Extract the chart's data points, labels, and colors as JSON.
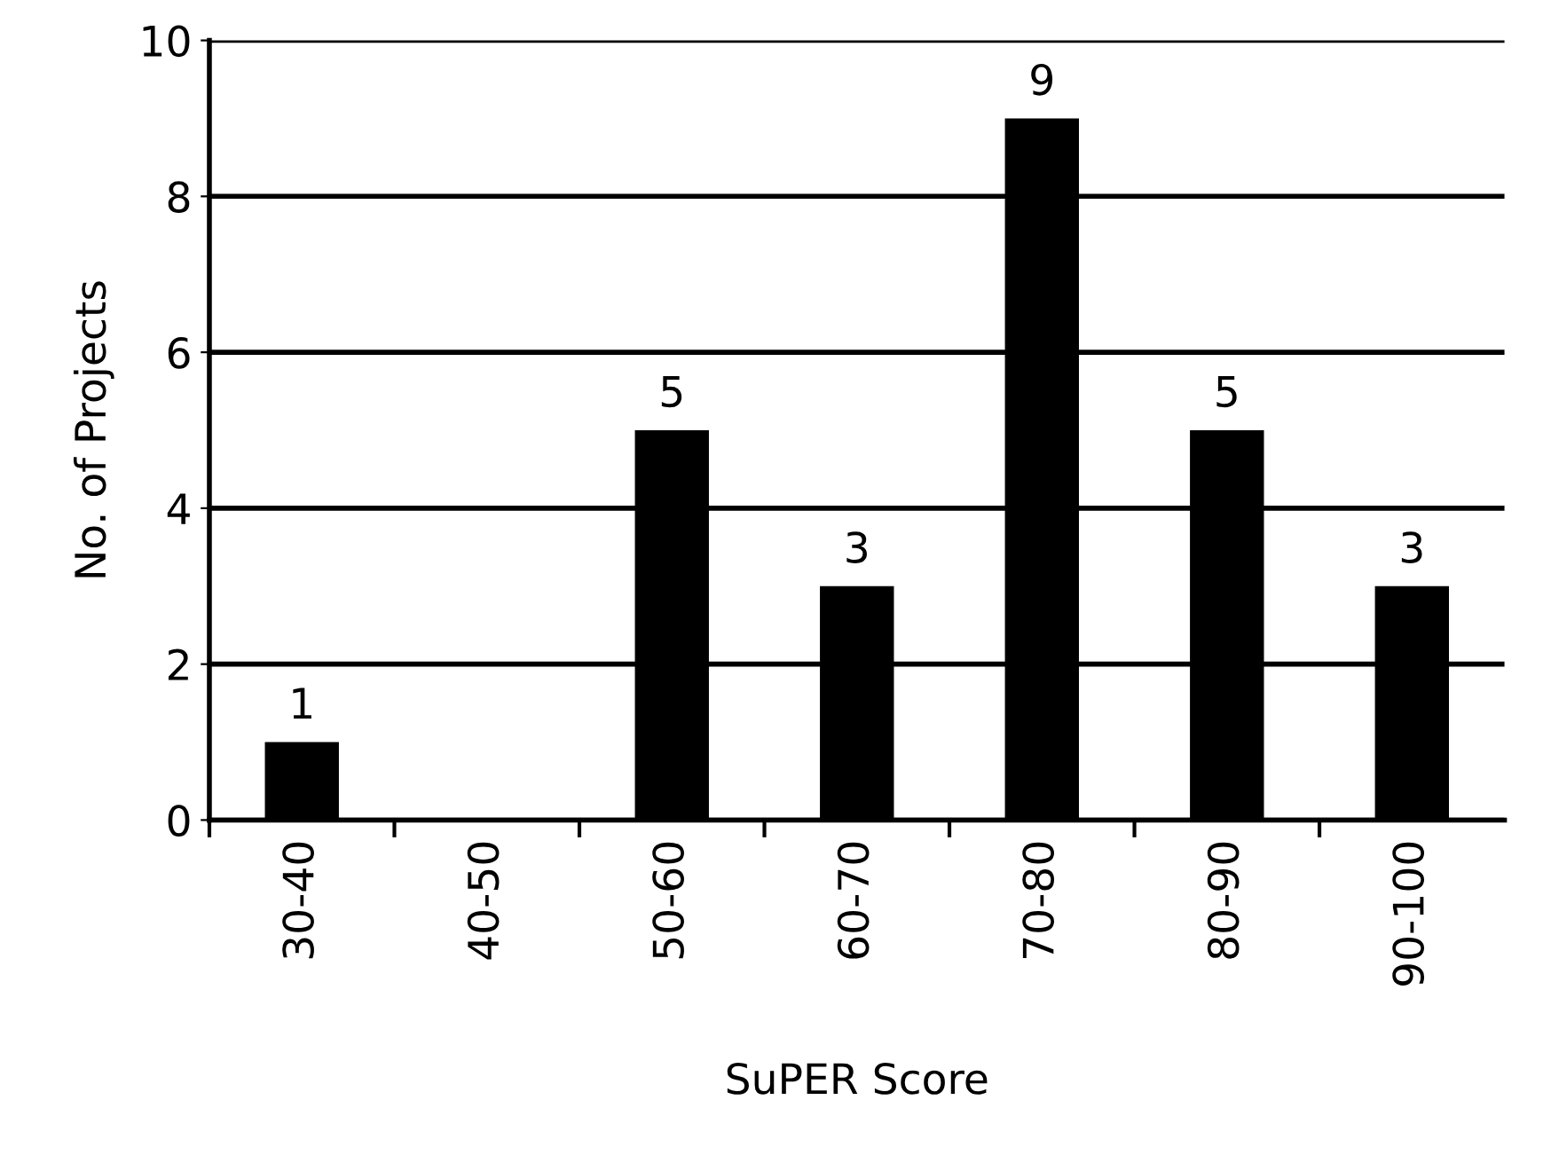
{
  "chart_data": {
    "type": "bar",
    "xlabel": "SuPER Score",
    "ylabel": "No. of Projects",
    "categories": [
      "30-40",
      "40-50",
      "50-60",
      "60-70",
      "70-80",
      "80-90",
      "90-100"
    ],
    "values": [
      1,
      0,
      5,
      3,
      9,
      5,
      3
    ],
    "value_labels": [
      "1",
      null,
      "5",
      "3",
      "9",
      "5",
      "3"
    ],
    "color": "#000000",
    "ylim": [
      0,
      10
    ],
    "yticks": [
      0,
      2,
      4,
      6,
      8,
      10
    ],
    "grid": "y"
  }
}
